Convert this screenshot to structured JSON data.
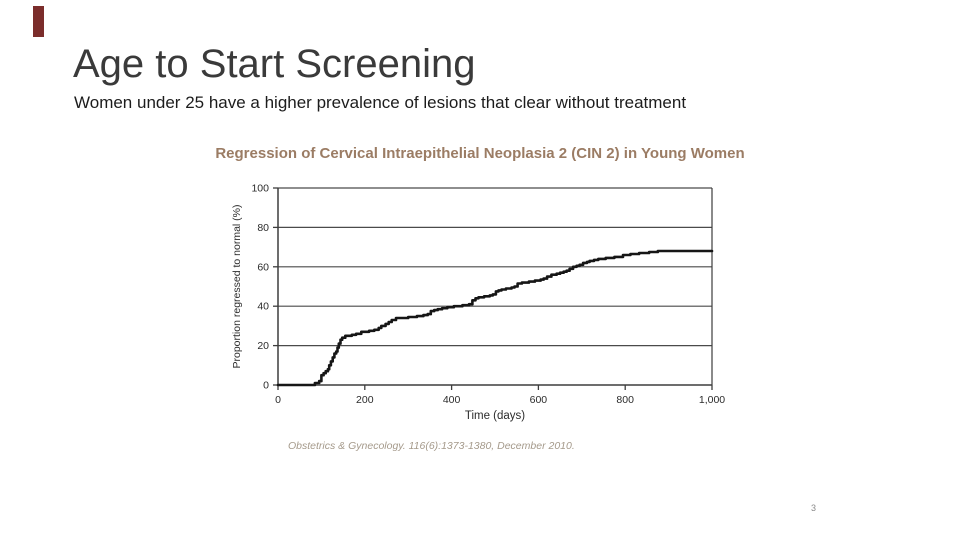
{
  "slide": {
    "title": "Age to Start Screening",
    "subtitle": "Women under 25 have a higher prevalence of lesions that clear without treatment",
    "page_number": "3",
    "accent_color": "#7b2d2b"
  },
  "footer": {
    "citation": "Obstetrics & Gynecology. 116(6):1373-1380, December 2010."
  },
  "chart_data": {
    "type": "line",
    "subtype": "step",
    "title": "Regression of Cervical Intraepithelial Neoplasia 2 (CIN 2) in Young Women",
    "xlabel": "Time (days)",
    "ylabel": "Proportion regressed to normal (%)",
    "xlim": [
      0,
      1000
    ],
    "ylim": [
      0,
      100
    ],
    "x_ticks": [
      0,
      200,
      400,
      600,
      800,
      1000
    ],
    "x_tick_labels": [
      "0",
      "200",
      "400",
      "600",
      "800",
      "1,000"
    ],
    "y_ticks": [
      0,
      20,
      40,
      60,
      80,
      100
    ],
    "y_tick_labels": [
      "0",
      "20",
      "40",
      "60",
      "80",
      "100"
    ],
    "grid": "horizontal",
    "legend": "none",
    "line_color": "#161616",
    "grid_color": "#4a4a4a",
    "axis_color": "#3d3d3d",
    "text_color": "#2b2b2b",
    "points": [
      [
        0,
        0
      ],
      [
        75,
        0
      ],
      [
        85,
        1
      ],
      [
        95,
        2
      ],
      [
        100,
        5
      ],
      [
        105,
        6
      ],
      [
        110,
        7
      ],
      [
        115,
        8
      ],
      [
        118,
        10
      ],
      [
        122,
        12
      ],
      [
        126,
        14
      ],
      [
        130,
        16
      ],
      [
        134,
        17
      ],
      [
        137,
        19
      ],
      [
        140,
        21
      ],
      [
        144,
        23
      ],
      [
        148,
        24
      ],
      [
        155,
        25
      ],
      [
        170,
        25.5
      ],
      [
        180,
        26
      ],
      [
        192,
        27
      ],
      [
        210,
        27.5
      ],
      [
        222,
        28
      ],
      [
        232,
        29
      ],
      [
        238,
        30
      ],
      [
        248,
        31
      ],
      [
        255,
        32
      ],
      [
        262,
        33
      ],
      [
        272,
        34
      ],
      [
        300,
        34.5
      ],
      [
        320,
        35
      ],
      [
        335,
        35.5
      ],
      [
        345,
        36
      ],
      [
        352,
        37.5
      ],
      [
        360,
        38
      ],
      [
        368,
        38.5
      ],
      [
        378,
        39
      ],
      [
        390,
        39.5
      ],
      [
        405,
        40
      ],
      [
        425,
        40.5
      ],
      [
        440,
        41
      ],
      [
        448,
        43
      ],
      [
        455,
        44
      ],
      [
        462,
        44.5
      ],
      [
        475,
        45
      ],
      [
        488,
        45.5
      ],
      [
        495,
        46
      ],
      [
        502,
        47.5
      ],
      [
        508,
        48
      ],
      [
        515,
        48.5
      ],
      [
        525,
        49
      ],
      [
        538,
        49.5
      ],
      [
        545,
        50
      ],
      [
        552,
        51.5
      ],
      [
        562,
        52
      ],
      [
        578,
        52.5
      ],
      [
        592,
        53
      ],
      [
        605,
        53.5
      ],
      [
        612,
        54
      ],
      [
        620,
        55
      ],
      [
        630,
        56
      ],
      [
        642,
        56.5
      ],
      [
        650,
        57
      ],
      [
        658,
        57.5
      ],
      [
        665,
        58
      ],
      [
        672,
        59
      ],
      [
        680,
        60
      ],
      [
        688,
        60.5
      ],
      [
        695,
        61
      ],
      [
        703,
        62
      ],
      [
        712,
        62.5
      ],
      [
        718,
        63
      ],
      [
        728,
        63.5
      ],
      [
        738,
        64
      ],
      [
        755,
        64.5
      ],
      [
        775,
        65
      ],
      [
        795,
        66
      ],
      [
        812,
        66.5
      ],
      [
        832,
        67
      ],
      [
        855,
        67.5
      ],
      [
        875,
        68
      ],
      [
        1000,
        68
      ]
    ]
  }
}
